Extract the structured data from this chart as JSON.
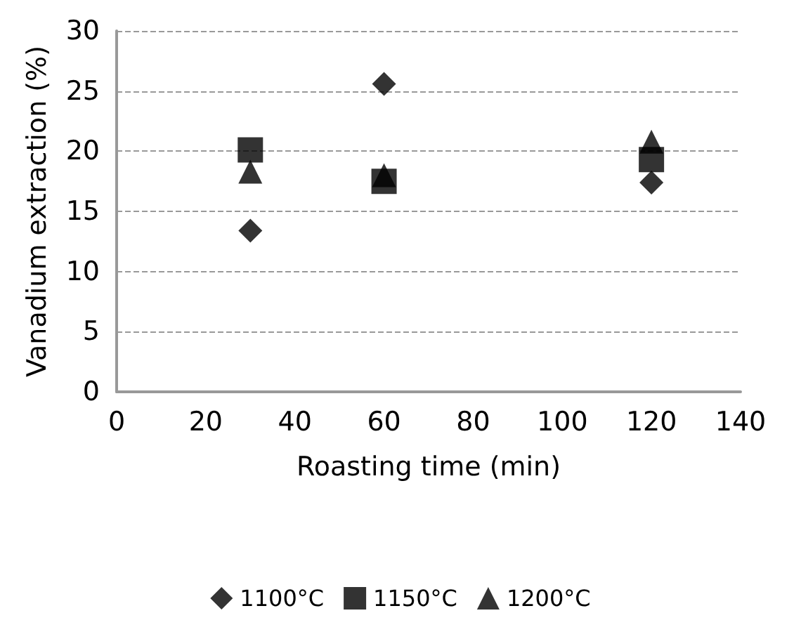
{
  "chart_data": {
    "type": "scatter",
    "xlabel": "Roasting time (min)",
    "ylabel": "Vanadium extraction (%)",
    "x": [
      30,
      60,
      120
    ],
    "series": [
      {
        "name": "1100°C",
        "color": "#000000",
        "marker": "diamond",
        "values": [
          13.4,
          25.6,
          17.4
        ]
      },
      {
        "name": "1150°C",
        "color": "#000000",
        "marker": "square",
        "values": [
          20.1,
          17.5,
          19.3
        ]
      },
      {
        "name": "1200°C",
        "color": "#000000",
        "marker": "triangle",
        "values": [
          18.3,
          18.0,
          20.8
        ]
      }
    ],
    "xlim": [
      0,
      140
    ],
    "xticks": [
      0,
      20,
      40,
      60,
      80,
      100,
      120,
      140
    ],
    "ylim": [
      0,
      30
    ],
    "yticks": [
      0,
      5,
      10,
      15,
      20,
      25,
      30
    ],
    "grid": "y",
    "legend": "bottom"
  }
}
